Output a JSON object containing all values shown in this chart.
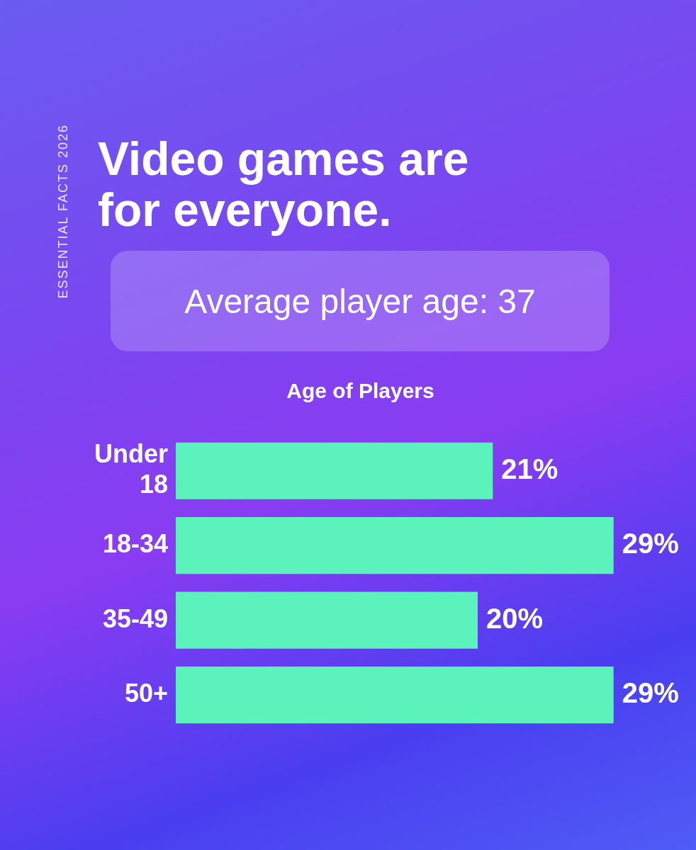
{
  "chart_data": {
    "type": "bar",
    "orientation": "horizontal",
    "title": "Video games are for everyone.",
    "subtitle": "Average player age: 37",
    "annotations": [
      "Age of Players",
      "ESSENTIAL FACTS 2026"
    ],
    "categories": [
      "Under 18",
      "18-34",
      "35-49",
      "50+"
    ],
    "values": [
      21,
      29,
      20,
      29
    ],
    "value_labels": [
      "21%",
      "29%",
      "20%",
      "29%"
    ],
    "color": "#5cf2bc",
    "tick_labels": "y"
  }
}
